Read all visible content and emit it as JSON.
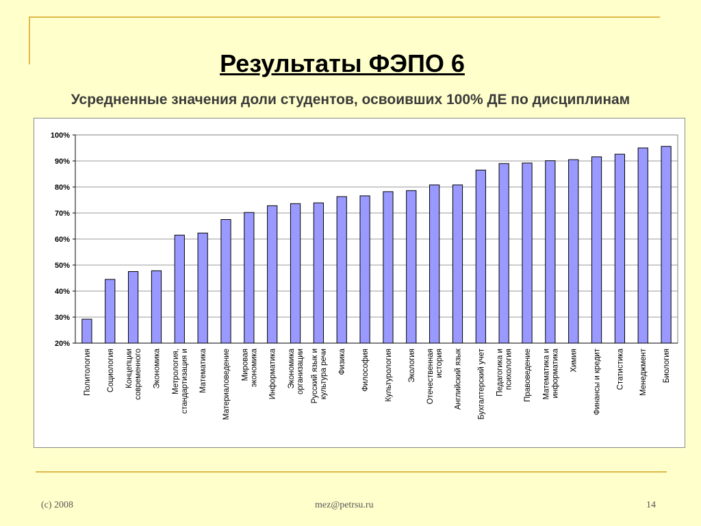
{
  "slide": {
    "title": "Результаты ФЭПО 6",
    "subtitle": "Усредненные значения доли студентов, освоивших 100% ДЕ по дисциплинам",
    "footer_left": "(c) 2008",
    "footer_center": "mez@petrsu.ru",
    "footer_right": "14"
  },
  "chart_data": {
    "type": "bar",
    "title": "",
    "xlabel": "",
    "ylabel": "",
    "ylim": [
      20,
      100
    ],
    "y_ticks": [
      "20%",
      "30%",
      "40%",
      "50%",
      "60%",
      "70%",
      "80%",
      "90%",
      "100%"
    ],
    "grid": true,
    "bar_color": "#9999ff",
    "categories": [
      [
        "Политология"
      ],
      [
        "Социология"
      ],
      [
        "Концепции",
        "современного"
      ],
      [
        "Экономика"
      ],
      [
        "Метрология,",
        "стандартизация и"
      ],
      [
        "Математика"
      ],
      [
        "Материаловедение"
      ],
      [
        "Мировая",
        "экономика"
      ],
      [
        "Информатика"
      ],
      [
        "Экономика",
        "организации"
      ],
      [
        "Русский язык и",
        "культура речи"
      ],
      [
        "Физика"
      ],
      [
        "Философия"
      ],
      [
        "Культурология"
      ],
      [
        "Экология"
      ],
      [
        "Отечественная",
        "история"
      ],
      [
        "Английский язык"
      ],
      [
        "Бухгалтерский учет"
      ],
      [
        "Педагогика и",
        "психология"
      ],
      [
        "Правоведение"
      ],
      [
        "Математика и",
        "информатика"
      ],
      [
        "Химия"
      ],
      [
        "Финансы и кредит"
      ],
      [
        "Статистика"
      ],
      [
        "Менеджмент"
      ],
      [
        "Биология"
      ]
    ],
    "values": [
      29.2,
      44.5,
      47.5,
      47.8,
      61.5,
      62.3,
      67.5,
      70.2,
      72.8,
      73.6,
      73.9,
      76.3,
      76.6,
      78.2,
      78.6,
      80.8,
      80.8,
      86.5,
      89.0,
      89.2,
      90.1,
      90.5,
      91.6,
      92.6,
      95.0,
      95.6
    ]
  }
}
